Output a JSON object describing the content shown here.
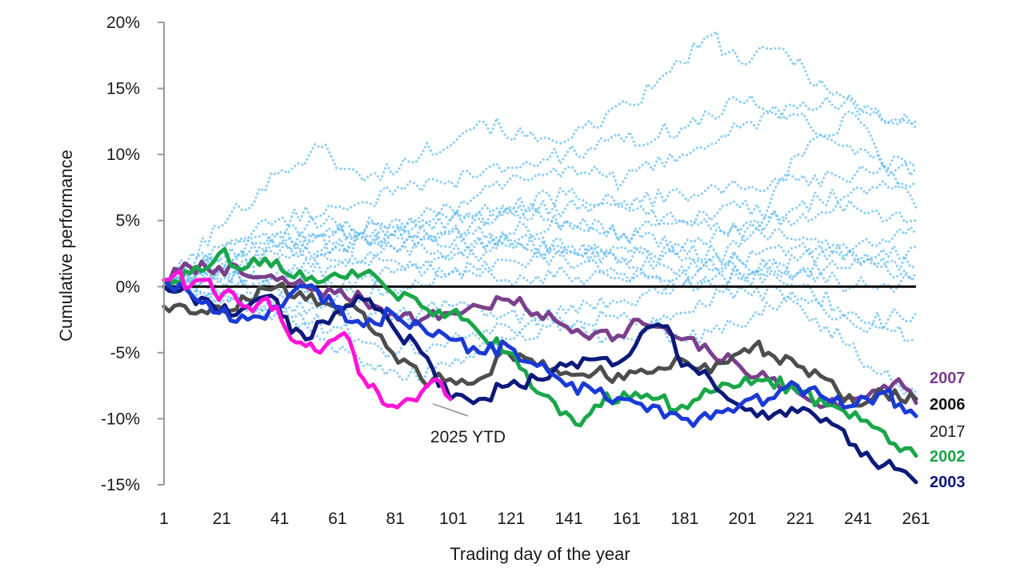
{
  "chart_data": {
    "type": "line",
    "xlabel": "Trading day of the year",
    "ylabel": "Cumulative performance",
    "xlim": [
      1,
      261
    ],
    "ylim": [
      -15,
      20
    ],
    "x_ticks": [
      "1",
      "21",
      "41",
      "61",
      "81",
      "101",
      "121",
      "141",
      "161",
      "181",
      "201",
      "221",
      "241",
      "261"
    ],
    "y_ticks": [
      "20%",
      "15%",
      "10%",
      "5%",
      "0%",
      "-5%",
      "-10%",
      "-15%"
    ],
    "y_tick_values": [
      20,
      15,
      10,
      5,
      0,
      -5,
      -10,
      -15
    ],
    "zero_line": true,
    "background_series_color": "#5bb8ec",
    "background_series": [
      {
        "x": [
          1,
          20,
          40,
          55,
          70,
          90,
          110,
          130,
          150,
          170,
          190,
          200,
          215,
          230,
          245,
          261
        ],
        "y": [
          0,
          4.5,
          8.5,
          10.5,
          8,
          10,
          12.5,
          11,
          12,
          15,
          19,
          17,
          18,
          15,
          13,
          12.5
        ]
      },
      {
        "x": [
          1,
          20,
          40,
          60,
          80,
          100,
          120,
          140,
          160,
          180,
          200,
          220,
          240,
          261
        ],
        "y": [
          0,
          3,
          5,
          6,
          7,
          8,
          9,
          10,
          11,
          12,
          14,
          13,
          10,
          9
        ]
      },
      {
        "x": [
          1,
          20,
          40,
          60,
          80,
          100,
          120,
          140,
          160,
          180,
          200,
          220,
          240,
          261
        ],
        "y": [
          0,
          2,
          3,
          4,
          5,
          6,
          8,
          9,
          8,
          10,
          12,
          13.5,
          14,
          12
        ]
      },
      {
        "x": [
          1,
          20,
          40,
          60,
          80,
          100,
          120,
          140,
          160,
          180,
          200,
          220,
          240,
          261
        ],
        "y": [
          0,
          2.5,
          4,
          3,
          4,
          5,
          6,
          5,
          4,
          5,
          6,
          5,
          6,
          5
        ]
      },
      {
        "x": [
          1,
          20,
          40,
          60,
          80,
          100,
          120,
          140,
          160,
          180,
          200,
          220,
          240,
          261
        ],
        "y": [
          0,
          1,
          2,
          3,
          4,
          3,
          4,
          5,
          4,
          3,
          2,
          3,
          2,
          1
        ]
      },
      {
        "x": [
          1,
          20,
          40,
          60,
          80,
          100,
          120,
          140,
          160,
          180,
          200,
          220,
          240,
          261
        ],
        "y": [
          0,
          1.5,
          3,
          4,
          4.5,
          5,
          5.5,
          6,
          6.5,
          7,
          7.5,
          8,
          8.5,
          9
        ]
      },
      {
        "x": [
          1,
          20,
          40,
          60,
          80,
          100,
          120,
          140,
          160,
          180,
          200,
          220,
          240,
          261
        ],
        "y": [
          0,
          0.5,
          1,
          2,
          3,
          2.5,
          3.5,
          3,
          2,
          1.5,
          0.5,
          1,
          2,
          3
        ]
      },
      {
        "x": [
          1,
          20,
          40,
          60,
          80,
          100,
          120,
          140,
          160,
          180,
          200,
          220,
          240,
          261
        ],
        "y": [
          0,
          1.2,
          2.4,
          3.2,
          3.8,
          4.2,
          3.6,
          2.8,
          2.2,
          2.8,
          4.2,
          6,
          7.5,
          8
        ]
      },
      {
        "x": [
          1,
          20,
          40,
          60,
          80,
          100,
          120,
          140,
          160,
          180,
          200,
          220,
          240,
          261
        ],
        "y": [
          0,
          -0.5,
          -1,
          0,
          1,
          2,
          3,
          2,
          1,
          0,
          1,
          2,
          3,
          4
        ]
      },
      {
        "x": [
          1,
          20,
          40,
          60,
          80,
          100,
          120,
          140,
          160,
          180,
          200,
          220,
          240,
          261
        ],
        "y": [
          0,
          -1,
          -2,
          -3,
          -5,
          -4,
          -3,
          -2,
          -1,
          0,
          2,
          1,
          0,
          0.5
        ]
      },
      {
        "x": [
          1,
          20,
          40,
          60,
          80,
          100,
          120,
          140,
          160,
          180,
          200,
          220,
          240,
          261
        ],
        "y": [
          0,
          0.5,
          0,
          -1,
          0,
          1,
          2,
          2.5,
          3,
          2,
          1,
          0,
          -2,
          -4
        ]
      },
      {
        "x": [
          1,
          20,
          40,
          55,
          70,
          85,
          100,
          120,
          140,
          160,
          180,
          200,
          215,
          230,
          245,
          261
        ],
        "y": [
          0,
          -0.5,
          -2,
          -4,
          -6,
          -7,
          -6,
          -4,
          -3,
          -2,
          -4,
          -3,
          -1,
          -3,
          -6,
          -8
        ]
      },
      {
        "x": [
          1,
          20,
          40,
          60,
          80,
          100,
          120,
          140,
          160,
          180,
          200,
          210,
          220,
          240,
          261
        ],
        "y": [
          0,
          1,
          0.5,
          1.5,
          2,
          1,
          0.5,
          1,
          0.5,
          1,
          3,
          6,
          10,
          13,
          6
        ]
      },
      {
        "x": [
          1,
          20,
          40,
          60,
          80,
          100,
          120,
          140,
          160,
          180,
          200,
          220,
          240,
          261
        ],
        "y": [
          0,
          2,
          4,
          5,
          3,
          4,
          6,
          7,
          6,
          5,
          4,
          3.5,
          2.5,
          1.5
        ]
      },
      {
        "x": [
          1,
          20,
          40,
          60,
          80,
          100,
          120,
          140,
          160,
          180,
          200,
          220,
          240,
          261
        ],
        "y": [
          0,
          -1,
          -1.5,
          -2,
          -2.5,
          -1.5,
          -2,
          -3,
          -4,
          -2,
          0,
          -1,
          -3,
          -2
        ]
      }
    ],
    "series": [
      {
        "name": "2007",
        "color": "#7b3f8c",
        "x": [
          1,
          10,
          20,
          30,
          40,
          50,
          60,
          70,
          80,
          90,
          100,
          110,
          120,
          130,
          140,
          150,
          160,
          165,
          170,
          180,
          190,
          200,
          210,
          220,
          230,
          240,
          250,
          255,
          261
        ],
        "y": [
          0.5,
          1.5,
          1.5,
          0.8,
          0.5,
          0,
          -0.5,
          -1,
          -2,
          -2.5,
          -2,
          -1.5,
          -1,
          -2,
          -3,
          -3.5,
          -3.8,
          -2.5,
          -3,
          -4,
          -5,
          -6,
          -7,
          -8,
          -9,
          -8.5,
          -7.5,
          -7,
          -8.8
        ]
      },
      {
        "name": "2006",
        "color": "#4d4d4d",
        "x": [
          1,
          10,
          20,
          30,
          40,
          50,
          60,
          70,
          80,
          90,
          100,
          110,
          120,
          130,
          140,
          150,
          160,
          170,
          180,
          190,
          200,
          205,
          210,
          220,
          230,
          240,
          250,
          261
        ],
        "y": [
          -1.5,
          -2,
          -1.5,
          -1,
          0,
          -1,
          -1.5,
          -2,
          -5,
          -7,
          -7,
          -7,
          -5,
          -6,
          -6.5,
          -6.5,
          -7,
          -6.5,
          -5.5,
          -6.5,
          -5,
          -4.5,
          -5,
          -6,
          -7,
          -9,
          -8,
          -8.5
        ]
      },
      {
        "name": "2002",
        "color": "#1aa64a",
        "x": [
          1,
          10,
          20,
          30,
          40,
          50,
          60,
          70,
          80,
          90,
          100,
          110,
          120,
          130,
          140,
          145,
          150,
          160,
          170,
          180,
          190,
          200,
          210,
          220,
          230,
          240,
          250,
          261
        ],
        "y": [
          0,
          1,
          2.5,
          1.5,
          2,
          0.5,
          1,
          1,
          -0.5,
          -1.5,
          -2,
          -3.5,
          -5,
          -8,
          -9.5,
          -10.5,
          -9,
          -8,
          -8.5,
          -9,
          -8,
          -7.5,
          -7,
          -8,
          -9,
          -9.5,
          -11,
          -12.8
        ]
      },
      {
        "name": "2003",
        "color": "#0d1a7a",
        "x": [
          1,
          10,
          20,
          30,
          40,
          45,
          50,
          60,
          70,
          80,
          90,
          100,
          110,
          120,
          130,
          140,
          150,
          160,
          170,
          175,
          180,
          190,
          200,
          210,
          220,
          230,
          240,
          250,
          261
        ],
        "y": [
          0,
          -0.5,
          -2,
          -1.5,
          -1,
          -3.5,
          -4,
          -2,
          -1,
          -3,
          -5,
          -8.5,
          -8.5,
          -7.5,
          -7,
          -6,
          -5.5,
          -5.5,
          -3,
          -3,
          -6,
          -7,
          -9,
          -10,
          -9.5,
          -10,
          -12,
          -13.5,
          -14.8
        ]
      },
      {
        "name": "2017",
        "color": "#1a3ad6",
        "x": [
          1,
          10,
          20,
          30,
          40,
          50,
          60,
          70,
          80,
          90,
          100,
          110,
          120,
          130,
          140,
          150,
          160,
          170,
          180,
          190,
          200,
          210,
          220,
          230,
          240,
          250,
          261
        ],
        "y": [
          0.5,
          -0.5,
          -2,
          -2.5,
          -1.5,
          0,
          -1.5,
          -3,
          -2,
          -3,
          -4,
          -5,
          -4.5,
          -6,
          -7.5,
          -8,
          -8.5,
          -9,
          -10,
          -10,
          -9,
          -8.5,
          -7.5,
          -8.5,
          -9,
          -8,
          -9.8
        ]
      },
      {
        "name": "2025 YTD",
        "color": "#ff14d8",
        "x": [
          1,
          5,
          10,
          15,
          20,
          25,
          30,
          35,
          40,
          45,
          50,
          55,
          60,
          65,
          70,
          75,
          80,
          85,
          90,
          95,
          100
        ],
        "y": [
          0.5,
          1,
          0,
          0.5,
          -1,
          -0.5,
          -1.5,
          -1,
          -1.5,
          -4,
          -4.5,
          -5,
          -4,
          -4,
          -7,
          -8,
          -9,
          -8.5,
          -8,
          -7,
          -8.5
        ]
      }
    ],
    "end_labels": [
      {
        "text": "2007",
        "color": "#7b3f8c",
        "bold": true,
        "series": "2007"
      },
      {
        "text": "2006",
        "color": "#111111",
        "bold": true,
        "series": "2006"
      },
      {
        "text": "2017",
        "color": "#1a1a1a",
        "bold": false,
        "series": "2017"
      },
      {
        "text": "2002",
        "color": "#1aa64a",
        "bold": true,
        "series": "2002"
      },
      {
        "text": "2003",
        "color": "#0d1a7a",
        "bold": true,
        "series": "2003"
      }
    ],
    "annotation": {
      "text": "2025 YTD",
      "series": "2025 YTD"
    }
  }
}
